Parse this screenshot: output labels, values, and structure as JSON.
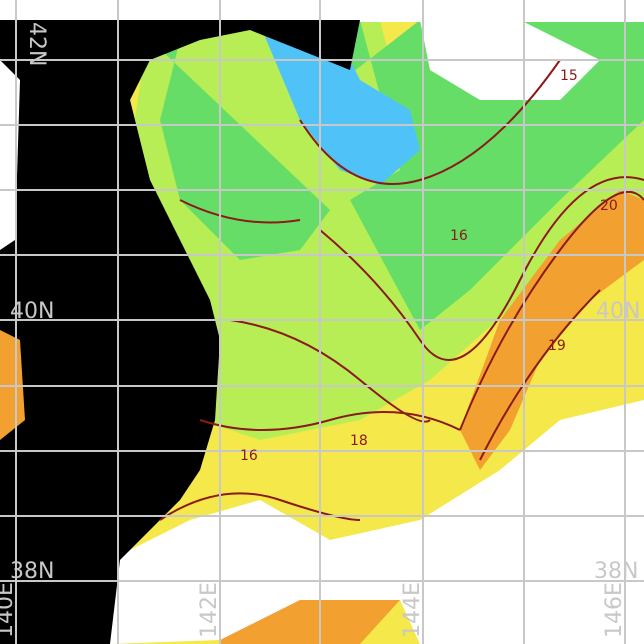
{
  "map": {
    "lat_labels": [
      {
        "text": "42N",
        "side": "left"
      },
      {
        "text": "40N",
        "side": "left"
      },
      {
        "text": "40N",
        "side": "right"
      },
      {
        "text": "38N",
        "side": "left"
      },
      {
        "text": "38N",
        "side": "right"
      }
    ],
    "lon_labels": [
      "140E",
      "142E",
      "144E",
      "146E"
    ],
    "contour_labels": [
      "15",
      "16",
      "16",
      "18",
      "19",
      "20"
    ],
    "colors": {
      "land": "#000000",
      "no_data": "#ffffff",
      "grid": "#c8c8c8",
      "contour": "#8b1a1a",
      "cold": "#4fc3f7",
      "cool": "#66dd66",
      "mild": "#b8ee55",
      "warm": "#f5e84a",
      "hot": "#f2a030"
    }
  }
}
